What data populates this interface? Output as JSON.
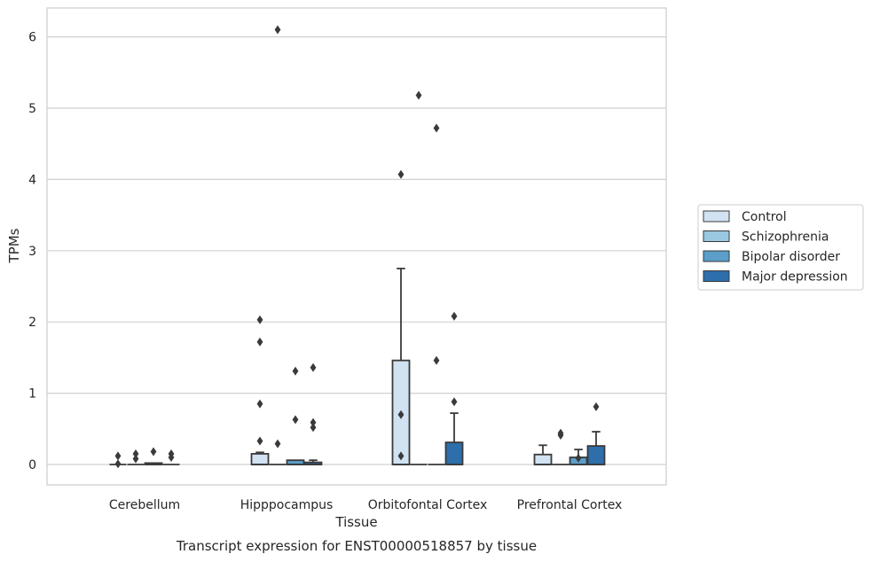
{
  "chart_data": {
    "type": "box",
    "title": "",
    "caption": "Transcript expression for ENST00000518857 by tissue",
    "xlabel": "Tissue",
    "ylabel": "TPMs",
    "ylim": [
      -0.3,
      6.4
    ],
    "yticks": [
      0,
      1,
      2,
      3,
      4,
      5,
      6
    ],
    "grid": "horizontal",
    "legend_position": "right",
    "categories": [
      "Cerebellum",
      "Hipppocampus",
      "Orbitofontal Cortex",
      "Prefrontal Cortex"
    ],
    "series": [
      {
        "name": "Control",
        "color": "#d1e2f2",
        "boxes": [
          {
            "q1": 0,
            "median": 0,
            "q3": 0,
            "whisker_low": 0,
            "whisker_high": 0,
            "outliers": [
              0.12,
              0.01
            ]
          },
          {
            "q1": 0,
            "median": 0,
            "q3": 0.15,
            "whisker_low": 0,
            "whisker_high": 0.17,
            "outliers": [
              2.03,
              1.72,
              0.85,
              0.33
            ]
          },
          {
            "q1": 0,
            "median": 0,
            "q3": 1.46,
            "whisker_low": 0,
            "whisker_high": 2.75,
            "outliers": [
              4.07,
              0.7,
              0.12
            ]
          },
          {
            "q1": 0,
            "median": 0,
            "q3": 0.14,
            "whisker_low": 0,
            "whisker_high": 0.27,
            "outliers": []
          }
        ]
      },
      {
        "name": "Schizophrenia",
        "color": "#9ac8e0",
        "boxes": [
          {
            "q1": 0,
            "median": 0,
            "q3": 0,
            "whisker_low": 0,
            "whisker_high": 0,
            "outliers": [
              0.15,
              0.08
            ]
          },
          {
            "q1": 0,
            "median": 0,
            "q3": 0,
            "whisker_low": 0,
            "whisker_high": 0,
            "outliers": [
              6.1,
              0.29
            ]
          },
          {
            "q1": 0,
            "median": 0,
            "q3": 0,
            "whisker_low": 0,
            "whisker_high": 0,
            "outliers": [
              5.18
            ]
          },
          {
            "q1": 0,
            "median": 0,
            "q3": 0,
            "whisker_low": 0,
            "whisker_high": 0,
            "outliers": [
              0.44,
              0.41
            ]
          }
        ]
      },
      {
        "name": "Bipolar disorder",
        "color": "#5a9ec9",
        "boxes": [
          {
            "q1": 0,
            "median": 0,
            "q3": 0.02,
            "whisker_low": 0,
            "whisker_high": 0.02,
            "outliers": [
              0.18
            ]
          },
          {
            "q1": 0,
            "median": 0,
            "q3": 0.06,
            "whisker_low": 0,
            "whisker_high": 0.06,
            "outliers": [
              1.31,
              0.63
            ]
          },
          {
            "q1": 0,
            "median": 0,
            "q3": 0,
            "whisker_low": 0,
            "whisker_high": 0,
            "outliers": [
              4.72,
              1.46
            ]
          },
          {
            "q1": 0,
            "median": 0,
            "q3": 0.1,
            "whisker_low": 0,
            "whisker_high": 0.21,
            "outliers": [
              0.09
            ]
          }
        ]
      },
      {
        "name": "Major depression",
        "color": "#2d6eab",
        "boxes": [
          {
            "q1": 0,
            "median": 0,
            "q3": 0,
            "whisker_low": 0,
            "whisker_high": 0,
            "outliers": [
              0.15,
              0.1
            ]
          },
          {
            "q1": 0,
            "median": 0,
            "q3": 0.03,
            "whisker_low": 0,
            "whisker_high": 0.06,
            "outliers": [
              1.36,
              0.59,
              0.52
            ]
          },
          {
            "q1": 0,
            "median": 0,
            "q3": 0.31,
            "whisker_low": 0,
            "whisker_high": 0.72,
            "outliers": [
              2.08,
              0.88
            ]
          },
          {
            "q1": 0,
            "median": 0,
            "q3": 0.26,
            "whisker_low": 0,
            "whisker_high": 0.46,
            "outliers": [
              0.81
            ]
          }
        ]
      }
    ]
  }
}
